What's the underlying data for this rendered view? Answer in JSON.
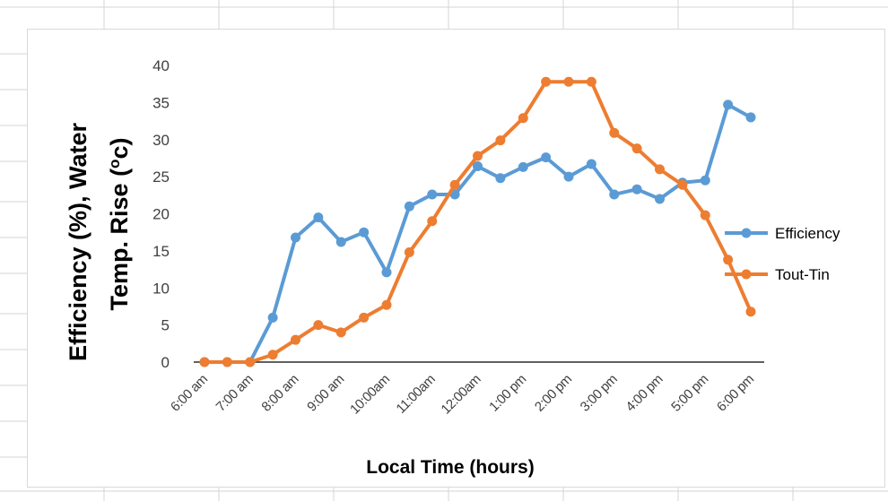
{
  "chart_data": {
    "type": "line",
    "xlabel": "Local Time (hours)",
    "ylabel_line1": "Efficiency (%), Water",
    "ylabel_line2_prefix": "Temp. Rise (",
    "ylabel_unit_sup": "o",
    "ylabel_unit_rest": "c)",
    "ylim": [
      0,
      40
    ],
    "yticks": [
      "0",
      "5",
      "10",
      "15",
      "20",
      "25",
      "30",
      "35",
      "40"
    ],
    "categories": [
      "6:00 am",
      "7:00 am",
      "8:00 am",
      "9:00 am",
      "10:00am",
      "11:00am",
      "12:00am",
      "1:00 pm",
      "2:00 pm",
      "3:00 pm",
      "4:00 pm",
      "5:00 pm",
      "6:00 pm"
    ],
    "x": [
      0,
      0.5,
      1,
      1.5,
      2,
      2.5,
      3,
      3.5,
      4,
      4.5,
      5,
      5.5,
      6,
      6.5,
      7,
      7.5,
      8,
      8.5,
      9,
      9.5,
      10,
      10.5,
      11,
      11.5,
      12
    ],
    "legend_position": "right",
    "grid": false,
    "series": [
      {
        "name": "Efficiency",
        "color": "#5b9bd5",
        "values": [
          0,
          0,
          0,
          6,
          16.8,
          19.5,
          16.2,
          17.5,
          12.1,
          21,
          22.6,
          22.6,
          26.4,
          24.8,
          26.3,
          27.6,
          25,
          26.7,
          22.6,
          23.3,
          22,
          24.2,
          24.5,
          34.7,
          33
        ]
      },
      {
        "name": "Tout-Tin",
        "color": "#ed7d31",
        "values": [
          0,
          0,
          0,
          1,
          3,
          5,
          4,
          6,
          7.7,
          14.8,
          19,
          23.9,
          27.8,
          29.9,
          32.9,
          37.8,
          37.8,
          37.8,
          30.9,
          28.8,
          26,
          23.9,
          19.8,
          13.8,
          6.8
        ]
      }
    ]
  }
}
